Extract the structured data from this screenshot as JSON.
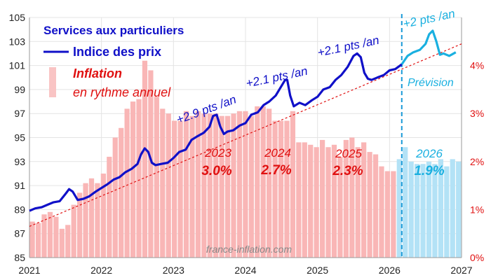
{
  "chart_data": {
    "type": "line+bar",
    "legend": {
      "title": "Services aux particuliers",
      "price_label": "Indice des prix",
      "inflation_label": "Inflation",
      "inflation_sublabel": "en rythme  annuel"
    },
    "x_ticks": [
      "2021",
      "2022",
      "2023",
      "2024",
      "2025",
      "2026",
      "2027"
    ],
    "x_range": [
      2021,
      2027
    ],
    "y_left": {
      "ticks": [
        "85",
        "87",
        "89",
        "91",
        "93",
        "95",
        "97",
        "99",
        "101",
        "103",
        "105"
      ],
      "range": [
        85,
        105
      ]
    },
    "y_right": {
      "ticks": [
        "0%",
        "1%",
        "2%",
        "3%",
        "4%"
      ],
      "range": [
        0,
        5
      ]
    },
    "forecast_start": 2026.17,
    "trend_labels": [
      "+2.9 pts /an",
      "+2.1 pts /an",
      "+2.1 pts /an",
      "+2 pts /an"
    ],
    "forecast_label": "Prévision",
    "annual_inflation": [
      {
        "year": "2023",
        "rate": "3.0%",
        "forecast": false
      },
      {
        "year": "2024",
        "rate": "2.7%",
        "forecast": false
      },
      {
        "year": "2025",
        "rate": "2.3%",
        "forecast": false
      },
      {
        "year": "2026",
        "rate": "1.9%",
        "forecast": true
      }
    ],
    "trend_line": {
      "start": [
        2021,
        87.6
      ],
      "end": [
        2027,
        102.8
      ]
    },
    "price_index": [
      [
        2021.0,
        88.9
      ],
      [
        2021.08,
        89.1
      ],
      [
        2021.17,
        89.2
      ],
      [
        2021.25,
        89.4
      ],
      [
        2021.33,
        89.6
      ],
      [
        2021.42,
        89.7
      ],
      [
        2021.5,
        90.3
      ],
      [
        2021.55,
        90.7
      ],
      [
        2021.6,
        90.5
      ],
      [
        2021.67,
        89.8
      ],
      [
        2021.75,
        89.9
      ],
      [
        2021.83,
        90.1
      ],
      [
        2021.92,
        90.5
      ],
      [
        2022.0,
        90.8
      ],
      [
        2022.08,
        91.1
      ],
      [
        2022.17,
        91.5
      ],
      [
        2022.25,
        91.7
      ],
      [
        2022.33,
        92.1
      ],
      [
        2022.42,
        92.4
      ],
      [
        2022.5,
        92.8
      ],
      [
        2022.55,
        93.6
      ],
      [
        2022.6,
        94.1
      ],
      [
        2022.65,
        93.8
      ],
      [
        2022.7,
        92.9
      ],
      [
        2022.75,
        92.7
      ],
      [
        2022.83,
        92.8
      ],
      [
        2022.92,
        92.9
      ],
      [
        2023.0,
        93.3
      ],
      [
        2023.08,
        93.8
      ],
      [
        2023.17,
        94.0
      ],
      [
        2023.25,
        94.8
      ],
      [
        2023.33,
        95.1
      ],
      [
        2023.42,
        95.4
      ],
      [
        2023.5,
        95.9
      ],
      [
        2023.55,
        96.8
      ],
      [
        2023.6,
        96.9
      ],
      [
        2023.65,
        95.9
      ],
      [
        2023.7,
        95.3
      ],
      [
        2023.75,
        95.5
      ],
      [
        2023.83,
        95.6
      ],
      [
        2023.92,
        96.0
      ],
      [
        2024.0,
        96.2
      ],
      [
        2024.08,
        96.9
      ],
      [
        2024.17,
        97.1
      ],
      [
        2024.25,
        97.7
      ],
      [
        2024.33,
        98.0
      ],
      [
        2024.42,
        98.5
      ],
      [
        2024.5,
        99.3
      ],
      [
        2024.55,
        99.8
      ],
      [
        2024.58,
        99.8
      ],
      [
        2024.62,
        98.5
      ],
      [
        2024.67,
        97.6
      ],
      [
        2024.75,
        97.9
      ],
      [
        2024.83,
        97.7
      ],
      [
        2024.92,
        98.1
      ],
      [
        2025.0,
        98.4
      ],
      [
        2025.08,
        99.0
      ],
      [
        2025.17,
        99.2
      ],
      [
        2025.25,
        99.8
      ],
      [
        2025.33,
        100.2
      ],
      [
        2025.42,
        100.9
      ],
      [
        2025.5,
        101.8
      ],
      [
        2025.55,
        102.0
      ],
      [
        2025.6,
        101.7
      ],
      [
        2025.65,
        100.4
      ],
      [
        2025.7,
        99.9
      ],
      [
        2025.75,
        99.8
      ],
      [
        2025.83,
        100.0
      ],
      [
        2025.92,
        100.2
      ],
      [
        2026.0,
        100.6
      ],
      [
        2026.08,
        100.7
      ],
      [
        2026.17,
        101.1
      ]
    ],
    "price_index_forecast": [
      [
        2026.17,
        101.1
      ],
      [
        2026.25,
        101.8
      ],
      [
        2026.33,
        102.1
      ],
      [
        2026.42,
        102.3
      ],
      [
        2026.5,
        102.8
      ],
      [
        2026.55,
        103.6
      ],
      [
        2026.6,
        103.9
      ],
      [
        2026.65,
        103.0
      ],
      [
        2026.7,
        101.9
      ],
      [
        2026.75,
        102.0
      ],
      [
        2026.83,
        101.8
      ],
      [
        2026.92,
        102.1
      ]
    ],
    "inflation_monthly": [
      0.75,
      0.72,
      0.9,
      0.95,
      0.85,
      0.6,
      0.68,
      1.1,
      1.35,
      1.55,
      1.65,
      1.55,
      1.75,
      2.1,
      2.5,
      2.7,
      3.1,
      3.25,
      3.3,
      4.1,
      3.9,
      3.35,
      3.1,
      3.0,
      2.85,
      2.85,
      3.05,
      2.95,
      3.05,
      3.0,
      3.0,
      3.0,
      2.95,
      2.95,
      3.0,
      3.05,
      3.05,
      2.95,
      3.15,
      3.15,
      3.1,
      2.85,
      2.85,
      2.85,
      3.05,
      2.4,
      2.4,
      2.35,
      2.3,
      2.45,
      2.3,
      2.35,
      2.1,
      2.45,
      2.5,
      2.3,
      2.4,
      2.2,
      2.15,
      1.9,
      1.8,
      1.8,
      2.05,
      2.3,
      2.0,
      1.95,
      1.95,
      2.0,
      1.95,
      2.05,
      1.9,
      2.05,
      2.0
    ],
    "inflation_forecast_start_index": 62,
    "watermark": "france-inflation.com"
  }
}
